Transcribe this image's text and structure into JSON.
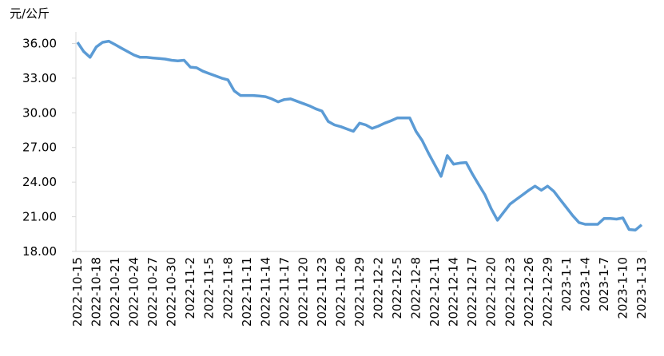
{
  "chart_data": {
    "type": "line",
    "y_axis_label": "元/公斤",
    "categories": [
      "2022-10-15",
      null,
      null,
      "2022-10-18",
      null,
      null,
      "2022-10-21",
      null,
      null,
      "2022-10-24",
      null,
      null,
      "2022-10-27",
      null,
      null,
      "2022-10-30",
      null,
      null,
      "2022-11-2",
      null,
      null,
      "2022-11-5",
      null,
      null,
      "2022-11-8",
      null,
      null,
      "2022-11-11",
      null,
      null,
      "2022-11-14",
      null,
      null,
      "2022-11-17",
      null,
      null,
      "2022-11-20",
      null,
      null,
      "2022-11-23",
      null,
      null,
      "2022-11-26",
      null,
      null,
      "2022-11-29",
      null,
      null,
      "2022-12-2",
      null,
      null,
      "2022-12-5",
      null,
      null,
      "2022-12-8",
      null,
      null,
      "2022-12-11",
      null,
      null,
      "2022-12-14",
      null,
      null,
      "2022-12-17",
      null,
      null,
      "2022-12-20",
      null,
      null,
      "2022-12-23",
      null,
      null,
      "2022-12-26",
      null,
      null,
      "2022-12-29",
      null,
      null,
      "2023-1-1",
      null,
      null,
      "2023-1-4",
      null,
      null,
      "2023-1-7",
      null,
      null,
      "2023-1-10",
      null,
      null,
      "2023-1-13"
    ],
    "values": [
      36.1,
      35.3,
      34.8,
      35.7,
      36.1,
      36.2,
      35.9,
      35.6,
      35.3,
      35.0,
      34.8,
      34.8,
      34.75,
      34.7,
      34.65,
      34.55,
      34.5,
      34.55,
      33.95,
      33.9,
      33.6,
      33.4,
      33.2,
      33.0,
      32.85,
      31.9,
      31.5,
      31.5,
      31.5,
      31.45,
      31.4,
      31.2,
      30.95,
      31.15,
      31.2,
      31.0,
      30.8,
      30.6,
      30.35,
      30.15,
      29.25,
      28.95,
      28.8,
      28.6,
      28.4,
      29.1,
      28.95,
      28.65,
      28.85,
      29.1,
      29.3,
      29.55,
      29.55,
      29.55,
      28.4,
      27.6,
      26.5,
      25.5,
      24.5,
      26.3,
      25.55,
      25.65,
      25.7,
      24.7,
      23.8,
      22.9,
      21.7,
      20.7,
      21.4,
      22.1,
      22.5,
      22.9,
      23.3,
      23.65,
      23.3,
      23.65,
      23.2,
      22.5,
      21.8,
      21.1,
      20.5,
      20.35,
      20.35,
      20.35,
      20.85,
      20.85,
      20.8,
      20.9,
      19.9,
      19.85,
      20.3
    ],
    "color": "#5b9bd5",
    "ylim": [
      18,
      37
    ],
    "yticks": [
      {
        "value": 18,
        "label": "18.00"
      },
      {
        "value": 21,
        "label": "21.00"
      },
      {
        "value": 24,
        "label": "24.00"
      },
      {
        "value": 27,
        "label": "27.00"
      },
      {
        "value": 30,
        "label": "30.00"
      },
      {
        "value": 33,
        "label": "33.00"
      },
      {
        "value": 36,
        "label": "36.00"
      }
    ],
    "grid": false
  }
}
